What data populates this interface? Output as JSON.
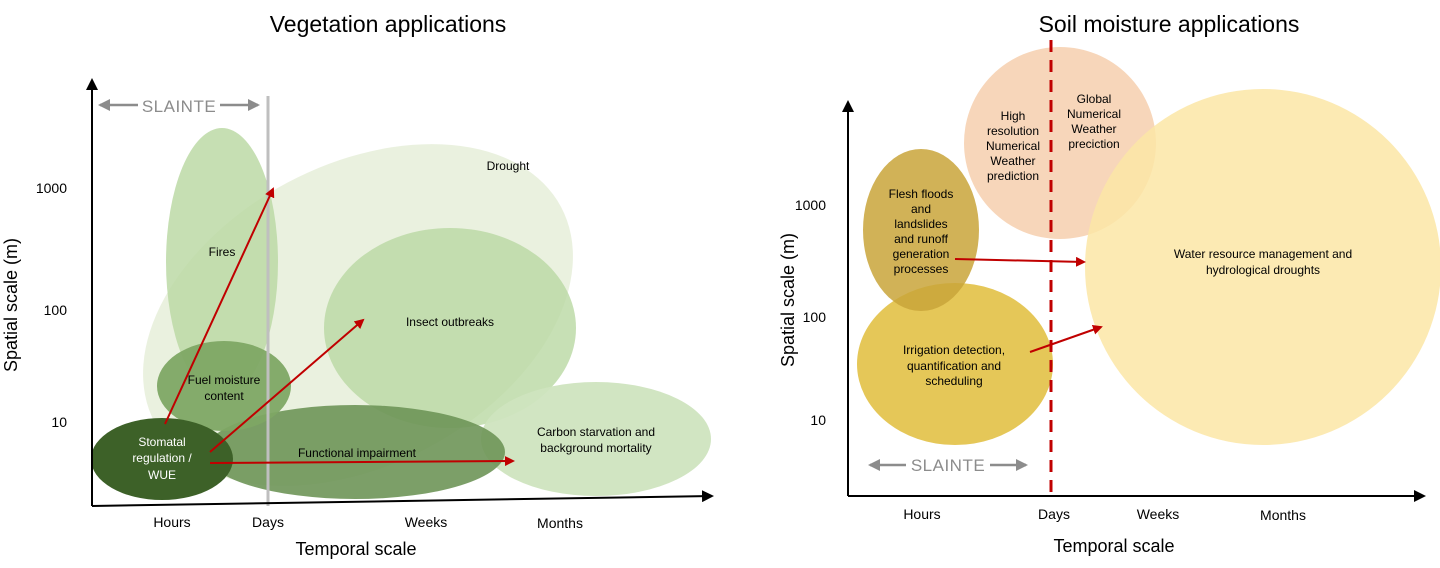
{
  "left_panel": {
    "title": "Vegetation applications",
    "xlabel": "Temporal scale",
    "ylabel": "Spatial scale (m)",
    "x_ticks": [
      "Hours",
      "Days",
      "Weeks",
      "Months"
    ],
    "y_ticks": [
      "1000",
      "100",
      "10"
    ],
    "slainte": "SLAINTE",
    "ellipses": {
      "drought": "Drought",
      "fires": "Fires",
      "insect": "Insect outbreaks",
      "fuel": [
        "Fuel moisture",
        "content"
      ],
      "functional": "Functional impairment",
      "carbon": [
        "Carbon starvation and",
        "background mortality"
      ],
      "stomatal": [
        "Stomatal",
        "regulation /",
        "WUE"
      ]
    },
    "colors": {
      "drought": "#e8f0dc",
      "fires": "#bcd9a6",
      "insect": "#c5dfb2",
      "fuel": "#7ea664",
      "functional": "#6e9558",
      "carbon": "#cfe4bf",
      "stomatal": "#3d6128",
      "arrow": "#c00000",
      "day_line": "#bfbfbf"
    }
  },
  "right_panel": {
    "title": "Soil moisture applications",
    "xlabel": "Temporal scale",
    "ylabel": "Spatial scale (m)",
    "x_ticks": [
      "Hours",
      "Days",
      "Weeks",
      "Months"
    ],
    "y_ticks": [
      "1000",
      "100",
      "10"
    ],
    "slainte": "SLAINTE",
    "ellipses": {
      "high_res_nwp": [
        "High",
        "resolution",
        "Numerical",
        "Weather",
        "prediction"
      ],
      "global_nwp": [
        "Global",
        "Numerical",
        "Weather",
        "preciction"
      ],
      "flash": [
        "Flesh floods",
        "and",
        "landslides",
        "and runoff",
        "generation",
        "processes"
      ],
      "water": [
        "Water resource management and",
        "hydrological droughts"
      ],
      "irrigation": [
        "Irrigation detection,",
        "quantification and",
        "scheduling"
      ]
    },
    "colors": {
      "high_res_nwp": "#f6cfae",
      "global_nwp": "#f6cfae",
      "flash": "#c9a53a",
      "water": "#fbe6a6",
      "irrigation": "#e3c24a",
      "arrow": "#c00000",
      "day_line": "#c00000"
    }
  }
}
